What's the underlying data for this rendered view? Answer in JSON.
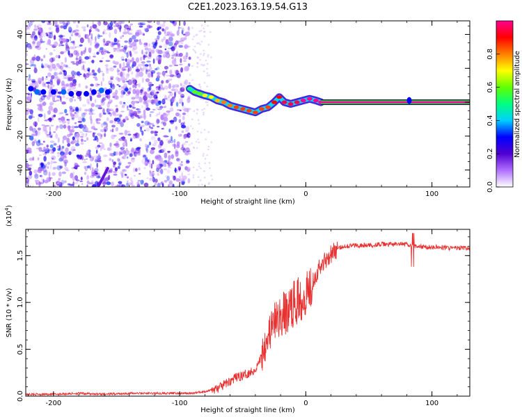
{
  "figure": {
    "title": "C2E1.2023.163.19.54.G13"
  },
  "chart_data": [
    {
      "type": "heatmap",
      "panel": "spectrogram",
      "xlabel": "Height of straight line (km)",
      "ylabel": "Frequency (Hz)",
      "xlim": [
        -222,
        130
      ],
      "ylim": [
        -50,
        48
      ],
      "xticks": [
        -200,
        -100,
        0,
        100
      ],
      "yticks": [
        -40,
        -20,
        0,
        20,
        40
      ],
      "grid": false,
      "colorbar": {
        "label": "Normalized spectral amplitude",
        "range": [
          0.0,
          1.0
        ],
        "ticks": [
          0.0,
          0.2,
          0.4,
          0.6,
          0.8
        ],
        "colormap": [
          "#ffffff",
          "#b070ff",
          "#5000d0",
          "#0000ff",
          "#00d0ff",
          "#00ff80",
          "#60ff00",
          "#ffff00",
          "#ff8000",
          "#ff0000",
          "#ff0090"
        ]
      },
      "ridge": {
        "x": [
          -92,
          -88,
          -84,
          -80,
          -75,
          -70,
          -65,
          -60,
          -55,
          -50,
          -45,
          -40,
          -35,
          -30,
          -25,
          -21,
          -17,
          -12,
          -7,
          -2,
          3,
          8,
          12
        ],
        "y": [
          8,
          6,
          5,
          4,
          3,
          1,
          0,
          -2,
          -3,
          -4,
          -5,
          -6,
          -4,
          -3,
          0,
          3,
          0,
          -1,
          0,
          1,
          2,
          1,
          0
        ],
        "amplitude": [
          0.5,
          0.6,
          0.6,
          0.7,
          0.7,
          0.75,
          0.8,
          0.8,
          0.85,
          0.85,
          0.85,
          0.85,
          0.85,
          0.85,
          0.9,
          0.9,
          0.95,
          0.95,
          0.95,
          1.0,
          1.0,
          1.0,
          1.0
        ]
      },
      "tone": {
        "x_range": [
          12,
          130
        ],
        "y": 0,
        "amplitude": 1.0
      },
      "blob": {
        "x": 82,
        "y": 1,
        "amplitude": 0.3
      },
      "noise_region": {
        "x_range": [
          -222,
          -92
        ],
        "y_range": [
          -50,
          48
        ],
        "amplitude_range": [
          0.0,
          0.2
        ]
      },
      "weak_track": {
        "x": [
          -218,
          -213,
          -208,
          -200,
          -192,
          -186,
          -180,
          -174,
          -168,
          -162,
          -157
        ],
        "y": [
          8,
          6,
          6,
          6,
          6,
          5,
          5,
          5,
          6,
          7,
          6
        ],
        "amplitude": [
          0.3,
          0.35,
          0.3,
          0.3,
          0.35,
          0.3,
          0.25,
          0.3,
          0.3,
          0.35,
          0.3
        ]
      },
      "weak_streak": {
        "x": [
          -164,
          -157
        ],
        "y": [
          -49,
          -39
        ],
        "amplitude": 0.18
      }
    },
    {
      "type": "line",
      "panel": "snr",
      "xlabel": "Height of straight line (km)",
      "ylabel": "SNR (10 * v/v)",
      "y_multiplier": "(x10",
      "y_multiplier_exp": "4",
      "y_multiplier_close": ")",
      "xlim": [
        -222,
        130
      ],
      "ylim": [
        0.0,
        1.78
      ],
      "xticks": [
        -200,
        -100,
        0,
        100
      ],
      "yticks": [
        0.0,
        0.5,
        1.0,
        1.5
      ],
      "ytick_labels": [
        "0.0",
        "0.5",
        "1.0",
        "1.5"
      ],
      "grid": false,
      "series": [
        {
          "color": "#e83232",
          "x": [
            -222,
            -200,
            -180,
            -160,
            -140,
            -120,
            -100,
            -90,
            -80,
            -70,
            -65,
            -60,
            -55,
            -50,
            -45,
            -40,
            -36,
            -32,
            -28,
            -24,
            -20,
            -16,
            -12,
            -8,
            -4,
            0,
            5,
            10,
            15,
            20,
            25,
            30,
            40,
            50,
            60,
            70,
            80,
            84,
            88,
            95,
            105,
            115,
            130
          ],
          "y": [
            0.02,
            0.02,
            0.03,
            0.02,
            0.03,
            0.03,
            0.03,
            0.03,
            0.05,
            0.08,
            0.12,
            0.16,
            0.2,
            0.22,
            0.25,
            0.28,
            0.4,
            0.6,
            0.7,
            0.8,
            0.85,
            0.88,
            0.95,
            1.0,
            1.05,
            1.1,
            1.22,
            1.35,
            1.45,
            1.52,
            1.57,
            1.6,
            1.61,
            1.61,
            1.62,
            1.62,
            1.62,
            1.6,
            1.6,
            1.59,
            1.59,
            1.58,
            1.58
          ]
        }
      ]
    }
  ]
}
